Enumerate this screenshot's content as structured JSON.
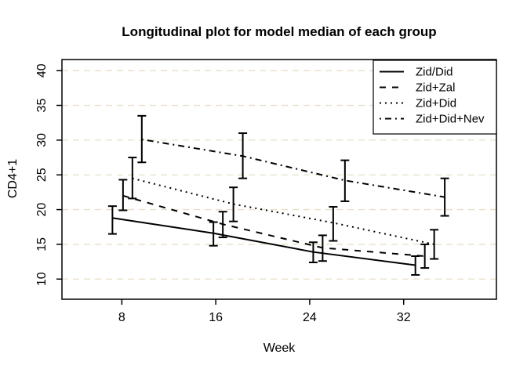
{
  "title": "Longitudinal plot for model median of each group",
  "x_axis_label": "Week",
  "y_axis_label": "CD4+1",
  "chart_data": {
    "type": "line",
    "title": "Longitudinal plot for model median of each group",
    "xlabel": "Week",
    "ylabel": "CD4+1",
    "xlim": [
      2.9,
      39.9
    ],
    "ylim": [
      7.1,
      41.6
    ],
    "x_ticks": [
      8,
      16,
      24,
      32
    ],
    "y_ticks": [
      10,
      15,
      20,
      25,
      30,
      35,
      40
    ],
    "grid": {
      "show": true,
      "color": "#e7dfc5",
      "style": "dashed"
    },
    "line_color": "#000000",
    "background": "#ffffff",
    "error_bars": true,
    "legend": {
      "position": "topright",
      "border": true
    },
    "series": [
      {
        "name": "Zid/Did",
        "linetype": "solid",
        "x": [
          7.2,
          15.8,
          24.3,
          33.0
        ],
        "median": [
          18.8,
          16.6,
          13.9,
          12.0
        ],
        "lower": [
          16.5,
          14.8,
          12.4,
          10.6
        ],
        "upper": [
          20.5,
          18.2,
          15.3,
          13.3
        ]
      },
      {
        "name": "Zid+Zal",
        "linetype": "dashed",
        "x": [
          8.1,
          16.6,
          25.1,
          33.8
        ],
        "median": [
          22.0,
          17.9,
          14.5,
          13.3
        ],
        "lower": [
          19.9,
          16.0,
          12.6,
          11.6
        ],
        "upper": [
          24.3,
          19.7,
          16.3,
          15.0
        ]
      },
      {
        "name": "Zid+Did",
        "linetype": "dotted",
        "x": [
          8.9,
          17.5,
          26.0,
          34.6
        ],
        "median": [
          24.5,
          20.8,
          18.1,
          15.0
        ],
        "lower": [
          21.6,
          18.3,
          15.5,
          12.9
        ],
        "upper": [
          27.5,
          23.2,
          20.4,
          17.1
        ]
      },
      {
        "name": "Zid+Did+Nev",
        "linetype": "dotdash",
        "x": [
          9.7,
          18.3,
          27.0,
          35.5
        ],
        "median": [
          30.1,
          27.7,
          24.2,
          21.8
        ],
        "lower": [
          26.8,
          24.5,
          21.2,
          19.1
        ],
        "upper": [
          33.5,
          31.0,
          27.1,
          24.5
        ]
      }
    ]
  }
}
